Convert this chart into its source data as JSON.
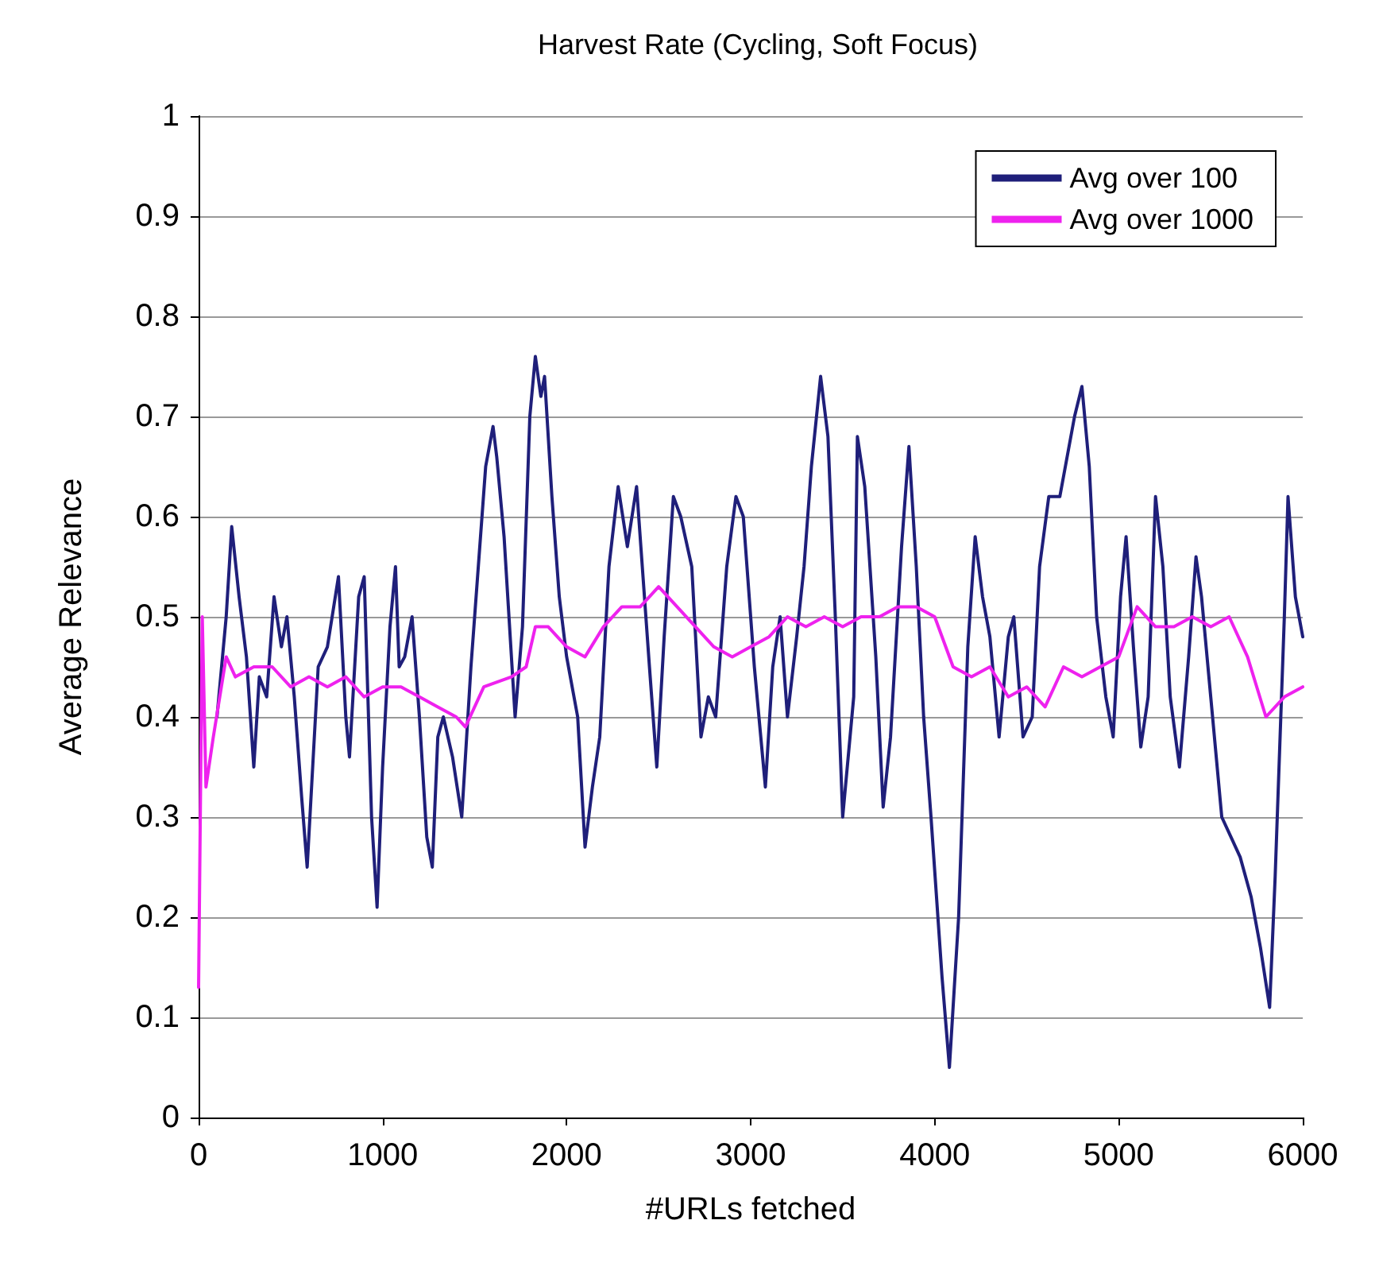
{
  "chart_data": {
    "type": "line",
    "title": "Harvest Rate (Cycling, Soft Focus)",
    "xlabel": "#URLs fetched",
    "ylabel": "Average Relevance",
    "xlim": [
      0,
      6000
    ],
    "xticks": [
      0,
      1000,
      2000,
      3000,
      4000,
      5000,
      6000
    ],
    "ylim": [
      0,
      1
    ],
    "yticks": [
      0,
      0.1,
      0.2,
      0.3,
      0.4,
      0.5,
      0.6,
      0.7,
      0.8,
      0.9,
      1
    ],
    "grid": "y",
    "legend": "top right",
    "marker": "none",
    "line_style": "solid",
    "series": [
      {
        "name": "Avg over 100",
        "color": "#1f1f7a",
        "x": [
          100,
          150,
          180,
          220,
          260,
          300,
          330,
          370,
          410,
          450,
          480,
          520,
          560,
          590,
          620,
          650,
          700,
          760,
          800,
          820,
          870,
          900,
          940,
          970,
          1000,
          1040,
          1070,
          1090,
          1120,
          1160,
          1200,
          1240,
          1270,
          1300,
          1330,
          1380,
          1430,
          1480,
          1560,
          1600,
          1620,
          1660,
          1720,
          1760,
          1800,
          1830,
          1860,
          1880,
          1920,
          1960,
          2000,
          2060,
          2100,
          2140,
          2180,
          2230,
          2280,
          2330,
          2380,
          2450,
          2490,
          2530,
          2580,
          2620,
          2680,
          2730,
          2770,
          2810,
          2870,
          2920,
          2960,
          3020,
          3080,
          3120,
          3160,
          3200,
          3250,
          3290,
          3330,
          3380,
          3420,
          3460,
          3500,
          3560,
          3580,
          3620,
          3680,
          3720,
          3760,
          3820,
          3860,
          3900,
          3940,
          3980,
          4040,
          4080,
          4130,
          4180,
          4220,
          4260,
          4300,
          4350,
          4400,
          4430,
          4480,
          4530,
          4570,
          4620,
          4680,
          4760,
          4800,
          4840,
          4880,
          4930,
          4970,
          5010,
          5040,
          5080,
          5120,
          5160,
          5200,
          5240,
          5280,
          5330,
          5380,
          5420,
          5450,
          5500,
          5560,
          5610,
          5660,
          5720,
          5770,
          5820,
          5850,
          5900,
          5920,
          5960,
          6000
        ],
        "values": [
          0.4,
          0.5,
          0.59,
          0.52,
          0.46,
          0.35,
          0.44,
          0.42,
          0.52,
          0.47,
          0.5,
          0.42,
          0.32,
          0.25,
          0.35,
          0.45,
          0.47,
          0.54,
          0.4,
          0.36,
          0.52,
          0.54,
          0.3,
          0.21,
          0.35,
          0.49,
          0.55,
          0.45,
          0.46,
          0.5,
          0.4,
          0.28,
          0.25,
          0.38,
          0.4,
          0.36,
          0.3,
          0.45,
          0.65,
          0.69,
          0.66,
          0.58,
          0.4,
          0.49,
          0.7,
          0.76,
          0.72,
          0.74,
          0.62,
          0.52,
          0.46,
          0.4,
          0.27,
          0.33,
          0.38,
          0.55,
          0.63,
          0.57,
          0.63,
          0.45,
          0.35,
          0.48,
          0.62,
          0.6,
          0.55,
          0.38,
          0.42,
          0.4,
          0.55,
          0.62,
          0.6,
          0.45,
          0.33,
          0.45,
          0.5,
          0.4,
          0.48,
          0.55,
          0.65,
          0.74,
          0.68,
          0.5,
          0.3,
          0.42,
          0.68,
          0.63,
          0.46,
          0.31,
          0.38,
          0.57,
          0.67,
          0.55,
          0.4,
          0.3,
          0.14,
          0.05,
          0.2,
          0.47,
          0.58,
          0.52,
          0.48,
          0.38,
          0.48,
          0.5,
          0.38,
          0.4,
          0.55,
          0.62,
          0.62,
          0.7,
          0.73,
          0.65,
          0.5,
          0.42,
          0.38,
          0.52,
          0.58,
          0.47,
          0.37,
          0.42,
          0.62,
          0.55,
          0.42,
          0.35,
          0.46,
          0.56,
          0.52,
          0.42,
          0.3,
          0.28,
          0.26,
          0.22,
          0.17,
          0.11,
          0.24,
          0.5,
          0.62,
          0.52,
          0.48
        ]
      },
      {
        "name": "Avg over 1000",
        "color": "#ee22ee",
        "x": [
          0,
          20,
          40,
          80,
          150,
          200,
          300,
          400,
          500,
          600,
          700,
          800,
          900,
          1000,
          1100,
          1200,
          1300,
          1400,
          1450,
          1550,
          1700,
          1780,
          1830,
          1900,
          2000,
          2100,
          2200,
          2300,
          2400,
          2500,
          2600,
          2700,
          2800,
          2900,
          3000,
          3100,
          3200,
          3300,
          3400,
          3500,
          3600,
          3700,
          3800,
          3900,
          4000,
          4100,
          4200,
          4300,
          4400,
          4500,
          4600,
          4700,
          4800,
          4900,
          5000,
          5100,
          5200,
          5300,
          5400,
          5500,
          5600,
          5700,
          5800,
          5900,
          6000
        ],
        "values": [
          0.13,
          0.5,
          0.33,
          0.38,
          0.46,
          0.44,
          0.45,
          0.45,
          0.43,
          0.44,
          0.43,
          0.44,
          0.42,
          0.43,
          0.43,
          0.42,
          0.41,
          0.4,
          0.39,
          0.43,
          0.44,
          0.45,
          0.49,
          0.49,
          0.47,
          0.46,
          0.49,
          0.51,
          0.51,
          0.53,
          0.51,
          0.49,
          0.47,
          0.46,
          0.47,
          0.48,
          0.5,
          0.49,
          0.5,
          0.49,
          0.5,
          0.5,
          0.51,
          0.51,
          0.5,
          0.45,
          0.44,
          0.45,
          0.42,
          0.43,
          0.41,
          0.45,
          0.44,
          0.45,
          0.46,
          0.51,
          0.49,
          0.49,
          0.5,
          0.49,
          0.5,
          0.46,
          0.4,
          0.42,
          0.43
        ]
      }
    ]
  }
}
